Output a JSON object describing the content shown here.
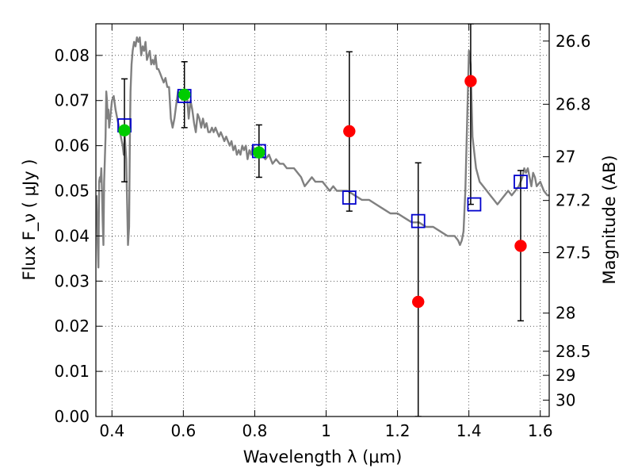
{
  "chart_data": {
    "type": "scatter",
    "xlabel": "Wavelength  λ (μm)",
    "ylabel": "Flux  F_ν  ( μJy )",
    "y2label": "Magnitude (AB)",
    "xlim": [
      0.355,
      1.625
    ],
    "ylim": [
      0.0,
      0.087
    ],
    "grid": true,
    "x_ticks": [
      {
        "value": 0.4,
        "label": "0.4"
      },
      {
        "value": 0.6,
        "label": "0.6"
      },
      {
        "value": 0.8,
        "label": "0.8"
      },
      {
        "value": 1.0,
        "label": "1"
      },
      {
        "value": 1.2,
        "label": "1.2"
      },
      {
        "value": 1.4,
        "label": "1.4"
      },
      {
        "value": 1.6,
        "label": "1.6"
      }
    ],
    "y_ticks": [
      {
        "value": 0.0,
        "label": "0.00"
      },
      {
        "value": 0.01,
        "label": "0.01"
      },
      {
        "value": 0.02,
        "label": "0.02"
      },
      {
        "value": 0.03,
        "label": "0.03"
      },
      {
        "value": 0.04,
        "label": "0.04"
      },
      {
        "value": 0.05,
        "label": "0.05"
      },
      {
        "value": 0.06,
        "label": "0.06"
      },
      {
        "value": 0.07,
        "label": "0.07"
      },
      {
        "value": 0.08,
        "label": "0.08"
      }
    ],
    "mag_ticks": [
      {
        "mag": 26.6,
        "label": "26.6"
      },
      {
        "mag": 26.8,
        "label": "26.8"
      },
      {
        "mag": 27.0,
        "label": "27"
      },
      {
        "mag": 27.2,
        "label": "27.2"
      },
      {
        "mag": 27.5,
        "label": "27.5"
      },
      {
        "mag": 28.0,
        "label": "28"
      },
      {
        "mag": 28.5,
        "label": "28.5"
      },
      {
        "mag": 29.0,
        "label": "29"
      },
      {
        "mag": 30.0,
        "label": "30"
      }
    ],
    "series": [
      {
        "kind": "line",
        "color": "#808080",
        "x": [
          0.357,
          0.36,
          0.362,
          0.364,
          0.366,
          0.368,
          0.37,
          0.372,
          0.374,
          0.376,
          0.378,
          0.38,
          0.382,
          0.384,
          0.386,
          0.388,
          0.39,
          0.392,
          0.395,
          0.4,
          0.405,
          0.41,
          0.415,
          0.42,
          0.425,
          0.43,
          0.433,
          0.436,
          0.44,
          0.445,
          0.448,
          0.45,
          0.452,
          0.455,
          0.458,
          0.462,
          0.466,
          0.47,
          0.474,
          0.478,
          0.482,
          0.486,
          0.49,
          0.494,
          0.498,
          0.502,
          0.506,
          0.51,
          0.514,
          0.518,
          0.522,
          0.526,
          0.53,
          0.535,
          0.54,
          0.545,
          0.55,
          0.555,
          0.56,
          0.565,
          0.57,
          0.575,
          0.58,
          0.585,
          0.59,
          0.595,
          0.6,
          0.605,
          0.61,
          0.615,
          0.62,
          0.625,
          0.63,
          0.635,
          0.64,
          0.645,
          0.65,
          0.655,
          0.66,
          0.665,
          0.67,
          0.675,
          0.68,
          0.685,
          0.69,
          0.695,
          0.7,
          0.705,
          0.71,
          0.715,
          0.72,
          0.725,
          0.73,
          0.735,
          0.74,
          0.745,
          0.75,
          0.755,
          0.76,
          0.765,
          0.77,
          0.775,
          0.78,
          0.785,
          0.79,
          0.795,
          0.8,
          0.81,
          0.82,
          0.83,
          0.84,
          0.85,
          0.86,
          0.87,
          0.88,
          0.89,
          0.9,
          0.91,
          0.92,
          0.93,
          0.935,
          0.94,
          0.95,
          0.96,
          0.97,
          0.98,
          0.99,
          1.0,
          1.01,
          1.02,
          1.03,
          1.04,
          1.06,
          1.08,
          1.1,
          1.12,
          1.14,
          1.16,
          1.18,
          1.2,
          1.22,
          1.24,
          1.26,
          1.28,
          1.3,
          1.32,
          1.34,
          1.36,
          1.37,
          1.375,
          1.38,
          1.385,
          1.39,
          1.395,
          1.4,
          1.405,
          1.41,
          1.42,
          1.43,
          1.44,
          1.45,
          1.46,
          1.47,
          1.48,
          1.49,
          1.5,
          1.51,
          1.52,
          1.53,
          1.54,
          1.55,
          1.555,
          1.56,
          1.565,
          1.57,
          1.575,
          1.58,
          1.585,
          1.59,
          1.6,
          1.61,
          1.62,
          1.625
        ],
        "y": [
          0.049,
          0.038,
          0.033,
          0.052,
          0.053,
          0.052,
          0.055,
          0.05,
          0.043,
          0.038,
          0.052,
          0.057,
          0.062,
          0.072,
          0.07,
          0.066,
          0.068,
          0.064,
          0.066,
          0.07,
          0.071,
          0.068,
          0.066,
          0.064,
          0.062,
          0.06,
          0.058,
          0.062,
          0.057,
          0.038,
          0.042,
          0.06,
          0.072,
          0.078,
          0.081,
          0.083,
          0.082,
          0.084,
          0.083,
          0.084,
          0.08,
          0.082,
          0.081,
          0.083,
          0.079,
          0.08,
          0.081,
          0.078,
          0.079,
          0.078,
          0.08,
          0.077,
          0.077,
          0.076,
          0.075,
          0.074,
          0.075,
          0.073,
          0.073,
          0.066,
          0.064,
          0.066,
          0.069,
          0.072,
          0.071,
          0.072,
          0.071,
          0.07,
          0.071,
          0.066,
          0.07,
          0.068,
          0.065,
          0.063,
          0.067,
          0.066,
          0.064,
          0.066,
          0.064,
          0.065,
          0.063,
          0.063,
          0.064,
          0.063,
          0.064,
          0.063,
          0.062,
          0.063,
          0.062,
          0.061,
          0.062,
          0.061,
          0.06,
          0.061,
          0.059,
          0.06,
          0.058,
          0.059,
          0.058,
          0.06,
          0.059,
          0.06,
          0.057,
          0.059,
          0.058,
          0.06,
          0.058,
          0.059,
          0.058,
          0.057,
          0.058,
          0.056,
          0.057,
          0.056,
          0.056,
          0.055,
          0.055,
          0.055,
          0.054,
          0.053,
          0.052,
          0.051,
          0.052,
          0.053,
          0.052,
          0.052,
          0.052,
          0.051,
          0.05,
          0.051,
          0.05,
          0.05,
          0.05,
          0.049,
          0.048,
          0.048,
          0.047,
          0.046,
          0.045,
          0.045,
          0.044,
          0.043,
          0.043,
          0.042,
          0.042,
          0.041,
          0.04,
          0.04,
          0.039,
          0.038,
          0.039,
          0.041,
          0.05,
          0.065,
          0.081,
          0.078,
          0.062,
          0.055,
          0.052,
          0.051,
          0.05,
          0.049,
          0.048,
          0.047,
          0.048,
          0.049,
          0.05,
          0.049,
          0.05,
          0.051,
          0.053,
          0.055,
          0.054,
          0.055,
          0.053,
          0.051,
          0.054,
          0.053,
          0.051,
          0.052,
          0.05,
          0.049,
          0.049
        ]
      },
      {
        "kind": "marker",
        "marker": "open-square",
        "color": "#0000cc",
        "x": [
          0.435,
          0.603,
          0.812,
          1.065,
          1.258,
          1.415,
          1.545
        ],
        "y": [
          0.0645,
          0.071,
          0.0588,
          0.0485,
          0.0433,
          0.047,
          0.052
        ]
      },
      {
        "kind": "marker",
        "marker": "filled-circle",
        "color": "#00cc00",
        "x": [
          0.435,
          0.603,
          0.812
        ],
        "y": [
          0.0634,
          0.0713,
          0.0585
        ],
        "err_low": [
          0.052,
          0.064,
          0.053
        ],
        "err_high": [
          0.0748,
          0.0786,
          0.0646
        ]
      },
      {
        "kind": "marker",
        "marker": "filled-circle",
        "color": "#ff0000",
        "x": [
          1.065,
          1.258,
          1.405,
          1.545
        ],
        "y": [
          0.0632,
          0.0254,
          0.0743,
          0.0378
        ],
        "err_low": [
          0.0455,
          0.0,
          0.047,
          0.0212
        ],
        "err_high": [
          0.0808,
          0.0562,
          0.087,
          0.0545
        ]
      }
    ]
  }
}
